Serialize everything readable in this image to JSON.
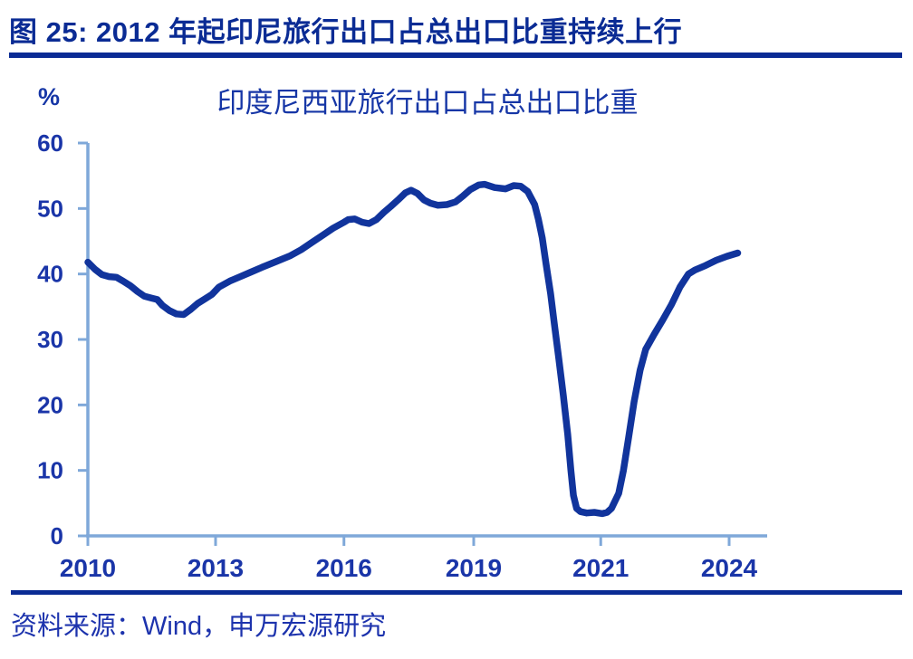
{
  "figure": {
    "title": "图 25: 2012 年起印尼旅行出口占总出口比重持续上行"
  },
  "footer": {
    "source": "资料来源：Wind，申万宏源研究"
  },
  "colors": {
    "header_navy": "#0A2B94",
    "title_blue": "#1636A6",
    "source_blue": "#1D33AD",
    "series_line_navy": "#11349C",
    "axis_light_blue": "#7FA8D9",
    "tick_label_blue": "#1A35A8"
  },
  "chart_data": {
    "type": "line",
    "title": "印度尼西亚旅行出口占总出口比重",
    "unit_label": "%",
    "xlabel": "",
    "ylabel": "%",
    "ylim": [
      0,
      60
    ],
    "yticks": [
      0,
      10,
      20,
      30,
      40,
      50,
      60
    ],
    "grid": false,
    "legend": "none",
    "xticks": {
      "labels": [
        "2010",
        "2013",
        "2016",
        "2019",
        "2021",
        "2024"
      ],
      "years": [
        2010,
        2013,
        2016,
        2019,
        2021,
        2024
      ],
      "frac": [
        0,
        0.188,
        0.377,
        0.568,
        0.755,
        0.944
      ]
    },
    "colors": {
      "line": "#11349C",
      "axis": "#7FA8D9",
      "tick_label": "#1A35A8"
    },
    "series": [
      {
        "name": "印度尼西亚旅行出口占总出口比重(%)",
        "points": [
          [
            2010.0,
            41.8
          ],
          [
            2010.17,
            40.7
          ],
          [
            2010.33,
            39.9
          ],
          [
            2010.5,
            39.6
          ],
          [
            2010.67,
            39.5
          ],
          [
            2010.83,
            38.9
          ],
          [
            2011.0,
            38.2
          ],
          [
            2011.17,
            37.3
          ],
          [
            2011.33,
            36.6
          ],
          [
            2011.5,
            36.3
          ],
          [
            2011.63,
            36.1
          ],
          [
            2011.75,
            35.2
          ],
          [
            2011.92,
            34.4
          ],
          [
            2012.08,
            33.9
          ],
          [
            2012.25,
            33.8
          ],
          [
            2012.42,
            34.6
          ],
          [
            2012.58,
            35.5
          ],
          [
            2012.75,
            36.2
          ],
          [
            2012.92,
            36.9
          ],
          [
            2013.08,
            38.0
          ],
          [
            2013.33,
            38.9
          ],
          [
            2013.58,
            39.6
          ],
          [
            2013.83,
            40.3
          ],
          [
            2014.08,
            41.0
          ],
          [
            2014.42,
            41.9
          ],
          [
            2014.75,
            42.8
          ],
          [
            2015.0,
            43.7
          ],
          [
            2015.25,
            44.8
          ],
          [
            2015.5,
            45.9
          ],
          [
            2015.75,
            47.0
          ],
          [
            2016.0,
            47.9
          ],
          [
            2016.1,
            48.3
          ],
          [
            2016.25,
            48.4
          ],
          [
            2016.42,
            47.9
          ],
          [
            2016.58,
            47.7
          ],
          [
            2016.75,
            48.3
          ],
          [
            2016.92,
            49.4
          ],
          [
            2017.08,
            50.3
          ],
          [
            2017.25,
            51.3
          ],
          [
            2017.42,
            52.4
          ],
          [
            2017.55,
            52.8
          ],
          [
            2017.7,
            52.3
          ],
          [
            2017.85,
            51.3
          ],
          [
            2018.0,
            50.8
          ],
          [
            2018.17,
            50.5
          ],
          [
            2018.38,
            50.6
          ],
          [
            2018.58,
            51.0
          ],
          [
            2018.75,
            51.9
          ],
          [
            2018.92,
            52.9
          ],
          [
            2019.08,
            53.6
          ],
          [
            2019.17,
            53.7
          ],
          [
            2019.33,
            53.2
          ],
          [
            2019.5,
            53.0
          ],
          [
            2019.63,
            53.5
          ],
          [
            2019.74,
            53.4
          ],
          [
            2019.85,
            52.6
          ],
          [
            2019.96,
            50.6
          ],
          [
            2020.02,
            48.3
          ],
          [
            2020.08,
            45.5
          ],
          [
            2020.14,
            41.5
          ],
          [
            2020.21,
            37.0
          ],
          [
            2020.27,
            32.3
          ],
          [
            2020.34,
            27.0
          ],
          [
            2020.41,
            21.5
          ],
          [
            2020.48,
            15.5
          ],
          [
            2020.53,
            10.0
          ],
          [
            2020.57,
            6.2
          ],
          [
            2020.62,
            4.2
          ],
          [
            2020.68,
            3.7
          ],
          [
            2020.78,
            3.5
          ],
          [
            2020.9,
            3.6
          ],
          [
            2021.04,
            3.4
          ],
          [
            2021.15,
            3.6
          ],
          [
            2021.25,
            4.2
          ],
          [
            2021.42,
            6.5
          ],
          [
            2021.53,
            10.0
          ],
          [
            2021.65,
            15.0
          ],
          [
            2021.78,
            20.5
          ],
          [
            2021.92,
            25.3
          ],
          [
            2022.05,
            28.5
          ],
          [
            2022.25,
            30.8
          ],
          [
            2022.45,
            33.0
          ],
          [
            2022.65,
            35.3
          ],
          [
            2022.85,
            38.0
          ],
          [
            2023.05,
            40.0
          ],
          [
            2023.2,
            40.6
          ],
          [
            2023.45,
            41.3
          ],
          [
            2023.7,
            42.1
          ],
          [
            2023.95,
            42.7
          ],
          [
            2024.2,
            43.2
          ]
        ]
      }
    ]
  }
}
